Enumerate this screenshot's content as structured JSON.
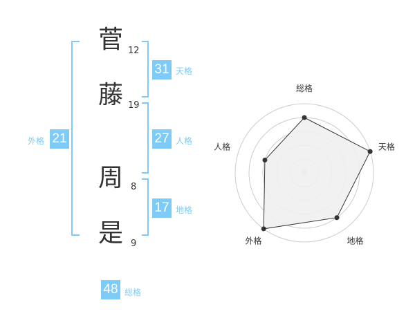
{
  "name": {
    "chars": [
      {
        "char": "菅",
        "strokes": "12"
      },
      {
        "char": "藤",
        "strokes": "19"
      },
      {
        "char": "周",
        "strokes": "8"
      },
      {
        "char": "是",
        "strokes": "9"
      }
    ]
  },
  "kaku": {
    "tenkaku": {
      "value": "31",
      "label": "天格"
    },
    "jinkaku": {
      "value": "27",
      "label": "人格"
    },
    "chikaku": {
      "value": "17",
      "label": "地格"
    },
    "gaikaku": {
      "value": "21",
      "label": "外格"
    },
    "soukaku": {
      "value": "48",
      "label": "総格"
    }
  },
  "colors": {
    "accent": "#7fcbf7",
    "radar_fill": "#f0f0f0",
    "radar_line": "#333333"
  },
  "chart_data": {
    "type": "radar",
    "categories": [
      "総格",
      "天格",
      "地格",
      "外格",
      "人格"
    ],
    "values": [
      4,
      5,
      4,
      5,
      3
    ],
    "rlim": [
      0,
      5
    ],
    "grid": true
  }
}
